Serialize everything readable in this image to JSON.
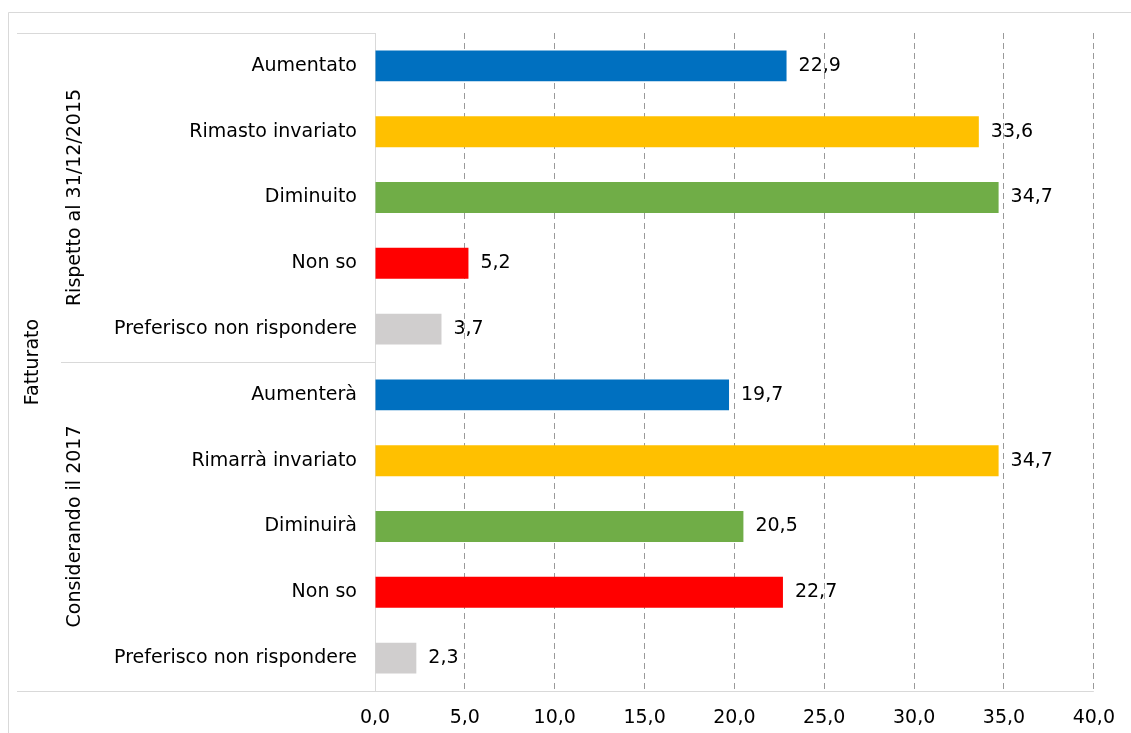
{
  "chart_data": {
    "type": "bar",
    "orientation": "horizontal",
    "ylabel": "Fatturato",
    "categories": [
      "Aumentato",
      "Rimasto invariato",
      "Diminuito",
      "Non so",
      "Preferisco non rispondere",
      "Aumenterà",
      "Rimarrà invariato",
      "Diminuirà",
      "Non so",
      "Preferisco non rispondere"
    ],
    "values": [
      22.9,
      33.6,
      34.7,
      5.2,
      3.7,
      19.7,
      34.7,
      20.5,
      22.7,
      2.3
    ],
    "colors": [
      "#0070c0",
      "#ffc000",
      "#70ad47",
      "#ff0000",
      "#d0cece",
      "#0070c0",
      "#ffc000",
      "#70ad47",
      "#ff0000",
      "#d0cece"
    ],
    "value_labels": [
      "22,9",
      "33,6",
      "34,7",
      "5,2",
      "3,7",
      "19,7",
      "34,7",
      "20,5",
      "22,7",
      "2,3"
    ],
    "xlim": [
      0,
      40
    ],
    "xticks": [
      {
        "value": 0,
        "label": "0,0"
      },
      {
        "value": 5,
        "label": "5,0"
      },
      {
        "value": 10,
        "label": "10,0"
      },
      {
        "value": 15,
        "label": "15,0"
      },
      {
        "value": 20,
        "label": "20,0"
      },
      {
        "value": 25,
        "label": "25,0"
      },
      {
        "value": 30,
        "label": "30,0"
      },
      {
        "value": 35,
        "label": "35,0"
      },
      {
        "value": 40,
        "label": "40,0"
      }
    ],
    "grid": "x",
    "annotations": [
      "Rispetto al 31/12/2015",
      "Considerando il 2017"
    ]
  }
}
